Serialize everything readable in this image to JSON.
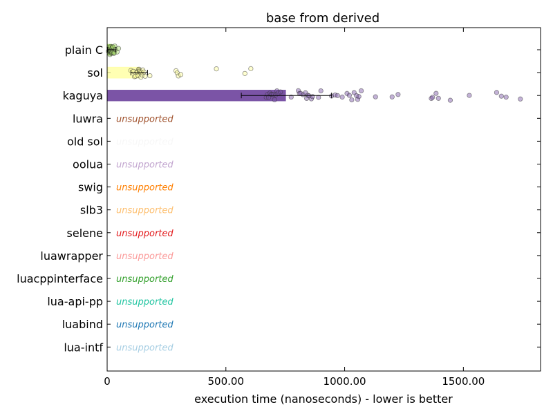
{
  "chart_data": {
    "type": "bar",
    "orientation": "horizontal",
    "title": "base from derived",
    "xlabel": "execution time (nanoseconds) - lower is better",
    "ylabel": "",
    "xlim": [
      0,
      1825
    ],
    "xticks": [
      0,
      500,
      1000,
      1500
    ],
    "xtick_labels": [
      "0",
      "500.00",
      "1000.00",
      "1500.00"
    ],
    "grid": false,
    "unsupported_label": "unsupported",
    "categories": [
      {
        "name": "plain C",
        "supported": true,
        "value": 20,
        "err_low": 3,
        "err_high": 37,
        "color": "#a6d96a",
        "samples": [
          5,
          8,
          10,
          12,
          13,
          15,
          15,
          17,
          18,
          19,
          20,
          20,
          21,
          22,
          23,
          24,
          25,
          26,
          28,
          30,
          32,
          35,
          42,
          48
        ]
      },
      {
        "name": "sol",
        "supported": true,
        "value": 135,
        "err_low": 100,
        "err_high": 170,
        "color": "#ffff99",
        "samples": [
          100,
          110,
          115,
          120,
          125,
          128,
          130,
          132,
          135,
          136,
          138,
          140,
          142,
          145,
          148,
          150,
          155,
          160,
          180,
          290,
          295,
          300,
          310,
          460,
          580,
          605
        ]
      },
      {
        "name": "kaguya",
        "supported": true,
        "value": 752,
        "err_low": 565,
        "err_high": 945,
        "color": "#7b54a6",
        "samples": [
          670,
          675,
          680,
          685,
          690,
          695,
          700,
          705,
          710,
          715,
          720,
          730,
          775,
          805,
          810,
          815,
          825,
          835,
          840,
          845,
          850,
          860,
          865,
          890,
          900,
          945,
          960,
          970,
          990,
          1010,
          1020,
          1030,
          1040,
          1050,
          1055,
          1060,
          1070,
          1130,
          1200,
          1225,
          1365,
          1370,
          1385,
          1395,
          1445,
          1525,
          1640,
          1660,
          1680,
          1740
        ]
      },
      {
        "name": "luwra",
        "supported": false,
        "color": "#a0522d"
      },
      {
        "name": "old sol",
        "supported": false,
        "color": "#f7f7f7"
      },
      {
        "name": "oolua",
        "supported": false,
        "color": "#c2a5cf"
      },
      {
        "name": "swig",
        "supported": false,
        "color": "#ff7f00"
      },
      {
        "name": "slb3",
        "supported": false,
        "color": "#fdbf6f"
      },
      {
        "name": "selene",
        "supported": false,
        "color": "#e31a1c"
      },
      {
        "name": "luawrapper",
        "supported": false,
        "color": "#fb9a99"
      },
      {
        "name": "luacppinterface",
        "supported": false,
        "color": "#33a02c"
      },
      {
        "name": "lua-api-pp",
        "supported": false,
        "color": "#1fc4a0"
      },
      {
        "name": "luabind",
        "supported": false,
        "color": "#1f78b4"
      },
      {
        "name": "lua-intf",
        "supported": false,
        "color": "#a6cee3"
      }
    ]
  }
}
